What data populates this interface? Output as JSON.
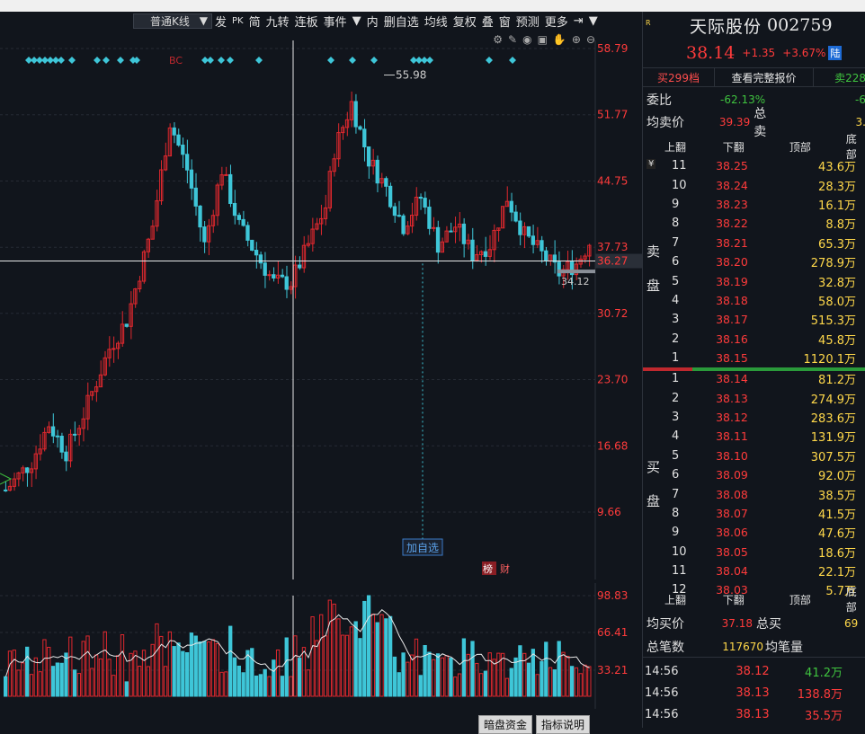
{
  "toolbar": {
    "period": "普通K线",
    "items": [
      "发",
      "PK",
      "简",
      "九转",
      "连板",
      "事件",
      "内",
      "删自选",
      "均线",
      "复权",
      "叠",
      "窗",
      "预测",
      "更多"
    ]
  },
  "chart": {
    "y_labels": [
      "58.79",
      "51.77",
      "44.75",
      "37.73",
      "30.72",
      "23.70",
      "16.68",
      "9.66"
    ],
    "cursor_price": "36.27",
    "high_label": "55.98",
    "low_label": "34.12",
    "add_watch": "加自选",
    "bc_mark": "BC",
    "tag_bang": "榜",
    "tag_cai": "财",
    "vol_labels": [
      "98.83",
      "66.41",
      "33.21"
    ]
  },
  "bottom_tabs": [
    "暗盘资金",
    "指标说明"
  ],
  "quote": {
    "name": "天际股份",
    "code": "002759",
    "price": "38.14",
    "change": "+1.35",
    "pct": "+3.67%",
    "badge": "陆",
    "buy_btn": "买299档",
    "full_btn": "查看完整报价",
    "sell_btn": "卖228",
    "weibi_label": "委比",
    "weibi_val": "-62.13%",
    "weibi_val2": "-6",
    "avg_sell_label": "均卖价",
    "avg_sell_val": "39.39",
    "total_sell_label": "总卖",
    "total_sell_val": "3.",
    "head": [
      "上翻",
      "下翻",
      "顶部",
      "底部"
    ],
    "sell_side": "卖盘",
    "buy_side": "买盘",
    "sell_rows": [
      {
        "n": "11",
        "p": "38.25",
        "v": "43.6万"
      },
      {
        "n": "10",
        "p": "38.24",
        "v": "28.3万"
      },
      {
        "n": "9",
        "p": "38.23",
        "v": "16.1万"
      },
      {
        "n": "8",
        "p": "38.22",
        "v": "8.8万"
      },
      {
        "n": "7",
        "p": "38.21",
        "v": "65.3万"
      },
      {
        "n": "6",
        "p": "38.20",
        "v": "278.9万"
      },
      {
        "n": "5",
        "p": "38.19",
        "v": "32.8万"
      },
      {
        "n": "4",
        "p": "38.18",
        "v": "58.0万"
      },
      {
        "n": "3",
        "p": "38.17",
        "v": "515.3万"
      },
      {
        "n": "2",
        "p": "38.16",
        "v": "45.8万"
      },
      {
        "n": "1",
        "p": "38.15",
        "v": "1120.1万"
      }
    ],
    "buy_rows": [
      {
        "n": "1",
        "p": "38.14",
        "v": "81.2万"
      },
      {
        "n": "2",
        "p": "38.13",
        "v": "274.9万"
      },
      {
        "n": "3",
        "p": "38.12",
        "v": "283.6万"
      },
      {
        "n": "4",
        "p": "38.11",
        "v": "131.9万"
      },
      {
        "n": "5",
        "p": "38.10",
        "v": "307.5万"
      },
      {
        "n": "6",
        "p": "38.09",
        "v": "92.0万"
      },
      {
        "n": "7",
        "p": "38.08",
        "v": "38.5万"
      },
      {
        "n": "8",
        "p": "38.07",
        "v": "41.5万"
      },
      {
        "n": "9",
        "p": "38.06",
        "v": "47.6万"
      },
      {
        "n": "10",
        "p": "38.05",
        "v": "18.6万"
      },
      {
        "n": "11",
        "p": "38.04",
        "v": "22.1万"
      },
      {
        "n": "12",
        "p": "38.03",
        "v": "5.7万"
      }
    ],
    "avg_buy_label": "均买价",
    "avg_buy_val": "37.18",
    "total_buy_label": "总买",
    "total_buy_val": "69",
    "total_trades_label": "总笔数",
    "total_trades_val": "117670",
    "avg_per_label": "均笔量",
    "ticks": [
      {
        "t": "14:56",
        "p": "38.12",
        "v": "41.2万",
        "c": "#3fc33f"
      },
      {
        "t": "14:56",
        "p": "38.13",
        "v": "138.8万",
        "c": "#ff3b3b"
      },
      {
        "t": "14:56",
        "p": "38.13",
        "v": "35.5万",
        "c": "#ff3b3b"
      }
    ]
  },
  "colors": {
    "up": "#e0282e",
    "down": "#3ec6d8",
    "bg": "#11151c"
  }
}
